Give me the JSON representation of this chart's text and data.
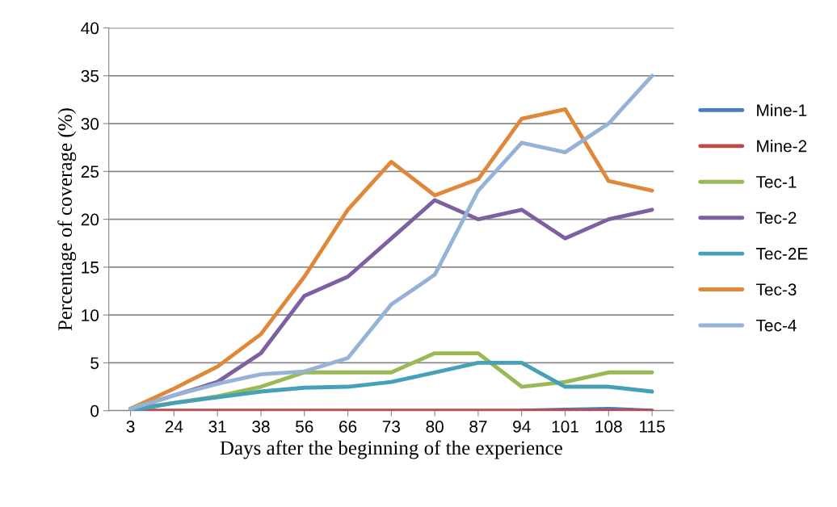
{
  "chart_data": {
    "type": "line",
    "xlabel": "Days after the beginning of the experience",
    "ylabel": "Percentage of coverage (%)",
    "categories": [
      "3",
      "24",
      "31",
      "38",
      "56",
      "66",
      "73",
      "80",
      "87",
      "94",
      "101",
      "108",
      "115"
    ],
    "series": [
      {
        "name": "Mine-1",
        "color": "#4a7ebb",
        "values": [
          null,
          null,
          null,
          null,
          null,
          null,
          null,
          null,
          null,
          0,
          0.1,
          0.2,
          0
        ]
      },
      {
        "name": "Mine-2",
        "color": "#be4b48",
        "values": [
          0,
          0,
          0,
          0,
          0,
          0,
          0,
          0,
          0,
          0,
          0,
          0,
          0
        ]
      },
      {
        "name": "Tec-1",
        "color": "#98b954",
        "values": [
          0.2,
          0.8,
          1.5,
          2.5,
          4,
          4,
          4,
          6,
          6,
          2.5,
          3,
          4,
          4
        ]
      },
      {
        "name": "Tec-2",
        "color": "#7d60a0",
        "values": [
          0.2,
          1.6,
          3,
          6,
          12,
          14,
          18,
          22,
          20,
          21,
          18,
          20,
          21
        ]
      },
      {
        "name": "Tec-2E",
        "color": "#46a0b8",
        "values": [
          0,
          0.8,
          1.4,
          2,
          2.4,
          2.5,
          3,
          4,
          5,
          5,
          2.5,
          2.5,
          2
        ]
      },
      {
        "name": "Tec-3",
        "color": "#e0883a",
        "values": [
          0.2,
          2.3,
          4.6,
          8,
          14,
          21,
          26,
          22.5,
          24.2,
          30.5,
          31.5,
          24,
          23
        ]
      },
      {
        "name": "Tec-4",
        "color": "#95b3d7",
        "values": [
          0.2,
          1.6,
          2.8,
          3.8,
          4.1,
          5.5,
          11.1,
          14.2,
          23,
          28,
          27,
          30,
          35
        ]
      }
    ],
    "ylim": [
      0,
      40
    ],
    "yticks": [
      0,
      5,
      10,
      15,
      20,
      25,
      30,
      35,
      40
    ],
    "grid": "y",
    "legend": "right",
    "marker": "none",
    "line_style": "solid"
  }
}
